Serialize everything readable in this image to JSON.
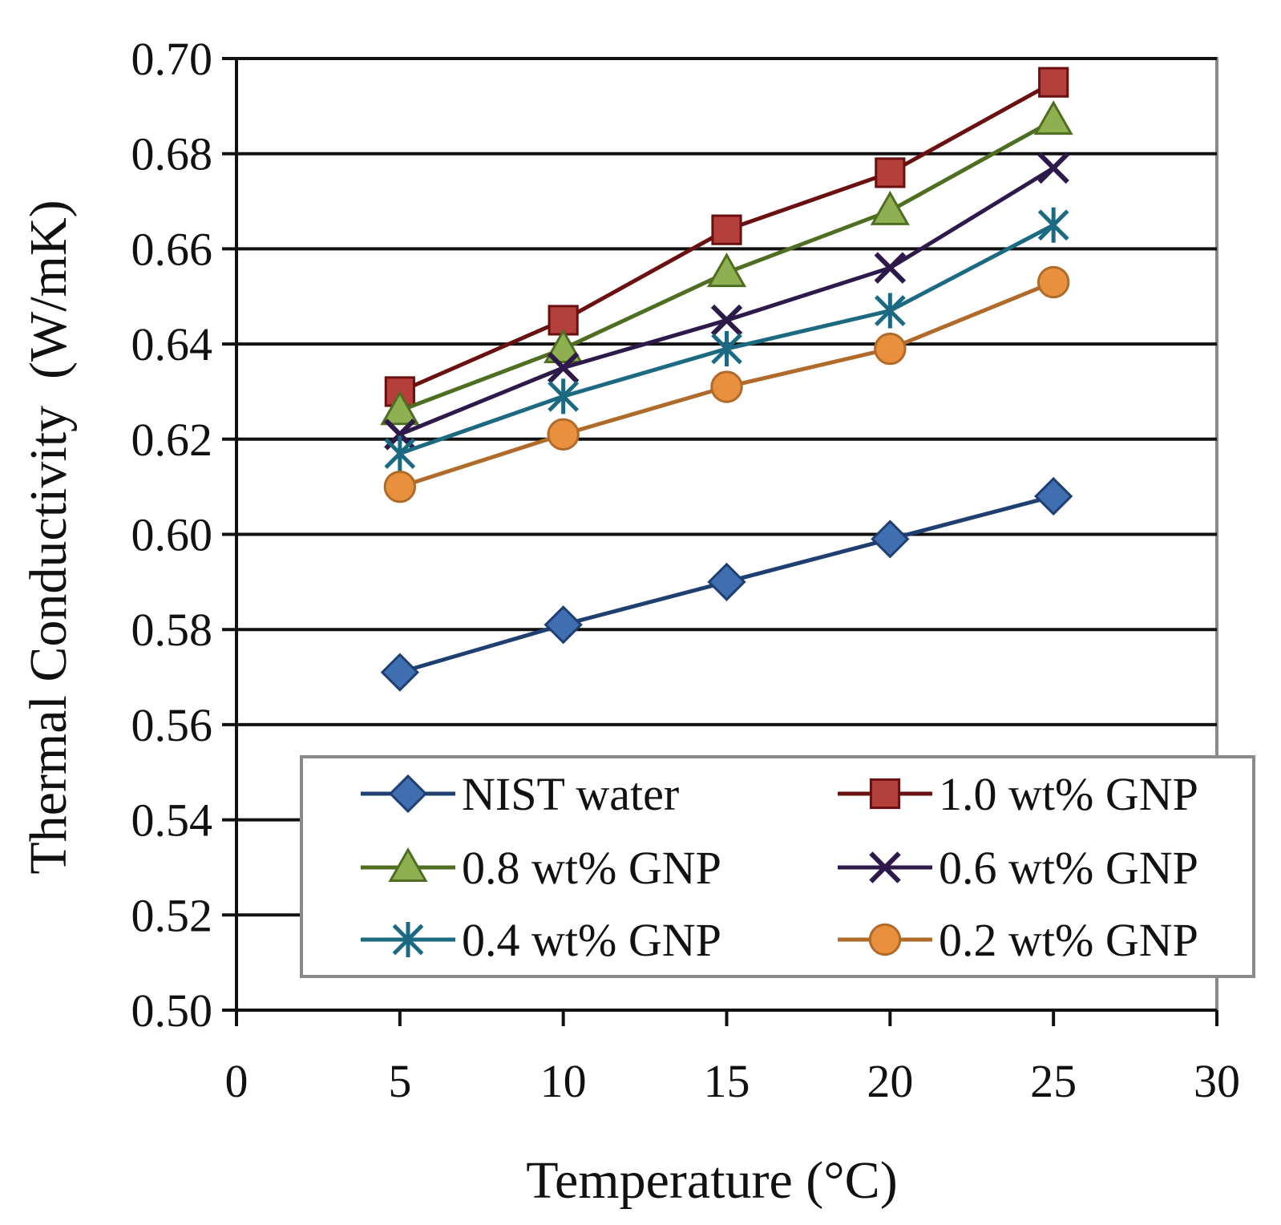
{
  "chart_data": {
    "type": "line",
    "title": "",
    "xlabel": "Temperature (°C)",
    "ylabel": "Thermal Conductivity  (W/mK)",
    "xlim": [
      0,
      30
    ],
    "ylim": [
      0.5,
      0.7
    ],
    "xticks": [
      "0",
      "5",
      "10",
      "15",
      "20",
      "25",
      "30"
    ],
    "xtick_values": [
      0,
      5,
      10,
      15,
      20,
      25,
      30
    ],
    "yticks": [
      "0.50",
      "0.52",
      "0.54",
      "0.56",
      "0.58",
      "0.60",
      "0.62",
      "0.64",
      "0.66",
      "0.68",
      "0.70"
    ],
    "ytick_values": [
      0.5,
      0.52,
      0.54,
      0.56,
      0.58,
      0.6,
      0.62,
      0.64,
      0.66,
      0.68,
      0.7
    ],
    "grid": "horizontal",
    "legend_position": "lower-right",
    "x": [
      5,
      10,
      15,
      20,
      25
    ],
    "series": [
      {
        "name": "NIST water",
        "marker": "diamond",
        "color": "#1f3f73",
        "fill": "#3f6fb0",
        "values": [
          0.571,
          0.581,
          0.59,
          0.599,
          0.608
        ]
      },
      {
        "name": "1.0 wt% GNP",
        "marker": "square",
        "color": "#6b1010",
        "fill": "#b5403b",
        "values": [
          0.63,
          0.645,
          0.664,
          0.676,
          0.695
        ]
      },
      {
        "name": "0.8 wt% GNP",
        "marker": "triangle",
        "color": "#4f6e22",
        "fill": "#8fb050",
        "values": [
          0.626,
          0.639,
          0.655,
          0.668,
          0.687
        ]
      },
      {
        "name": "0.6 wt% GNP",
        "marker": "x",
        "color": "#2d1a4a",
        "fill": "#2d1a4a",
        "values": [
          0.621,
          0.635,
          0.645,
          0.656,
          0.677
        ]
      },
      {
        "name": "0.4 wt% GNP",
        "marker": "star",
        "color": "#1c6a82",
        "fill": "#1c6a82",
        "values": [
          0.617,
          0.629,
          0.639,
          0.647,
          0.665
        ]
      },
      {
        "name": "0.2 wt% GNP",
        "marker": "circle",
        "color": "#b06a2a",
        "fill": "#e8903d",
        "values": [
          0.61,
          0.621,
          0.631,
          0.639,
          0.653
        ]
      }
    ],
    "legend_layout": [
      [
        0,
        1
      ],
      [
        2,
        3
      ],
      [
        4,
        5
      ]
    ]
  }
}
